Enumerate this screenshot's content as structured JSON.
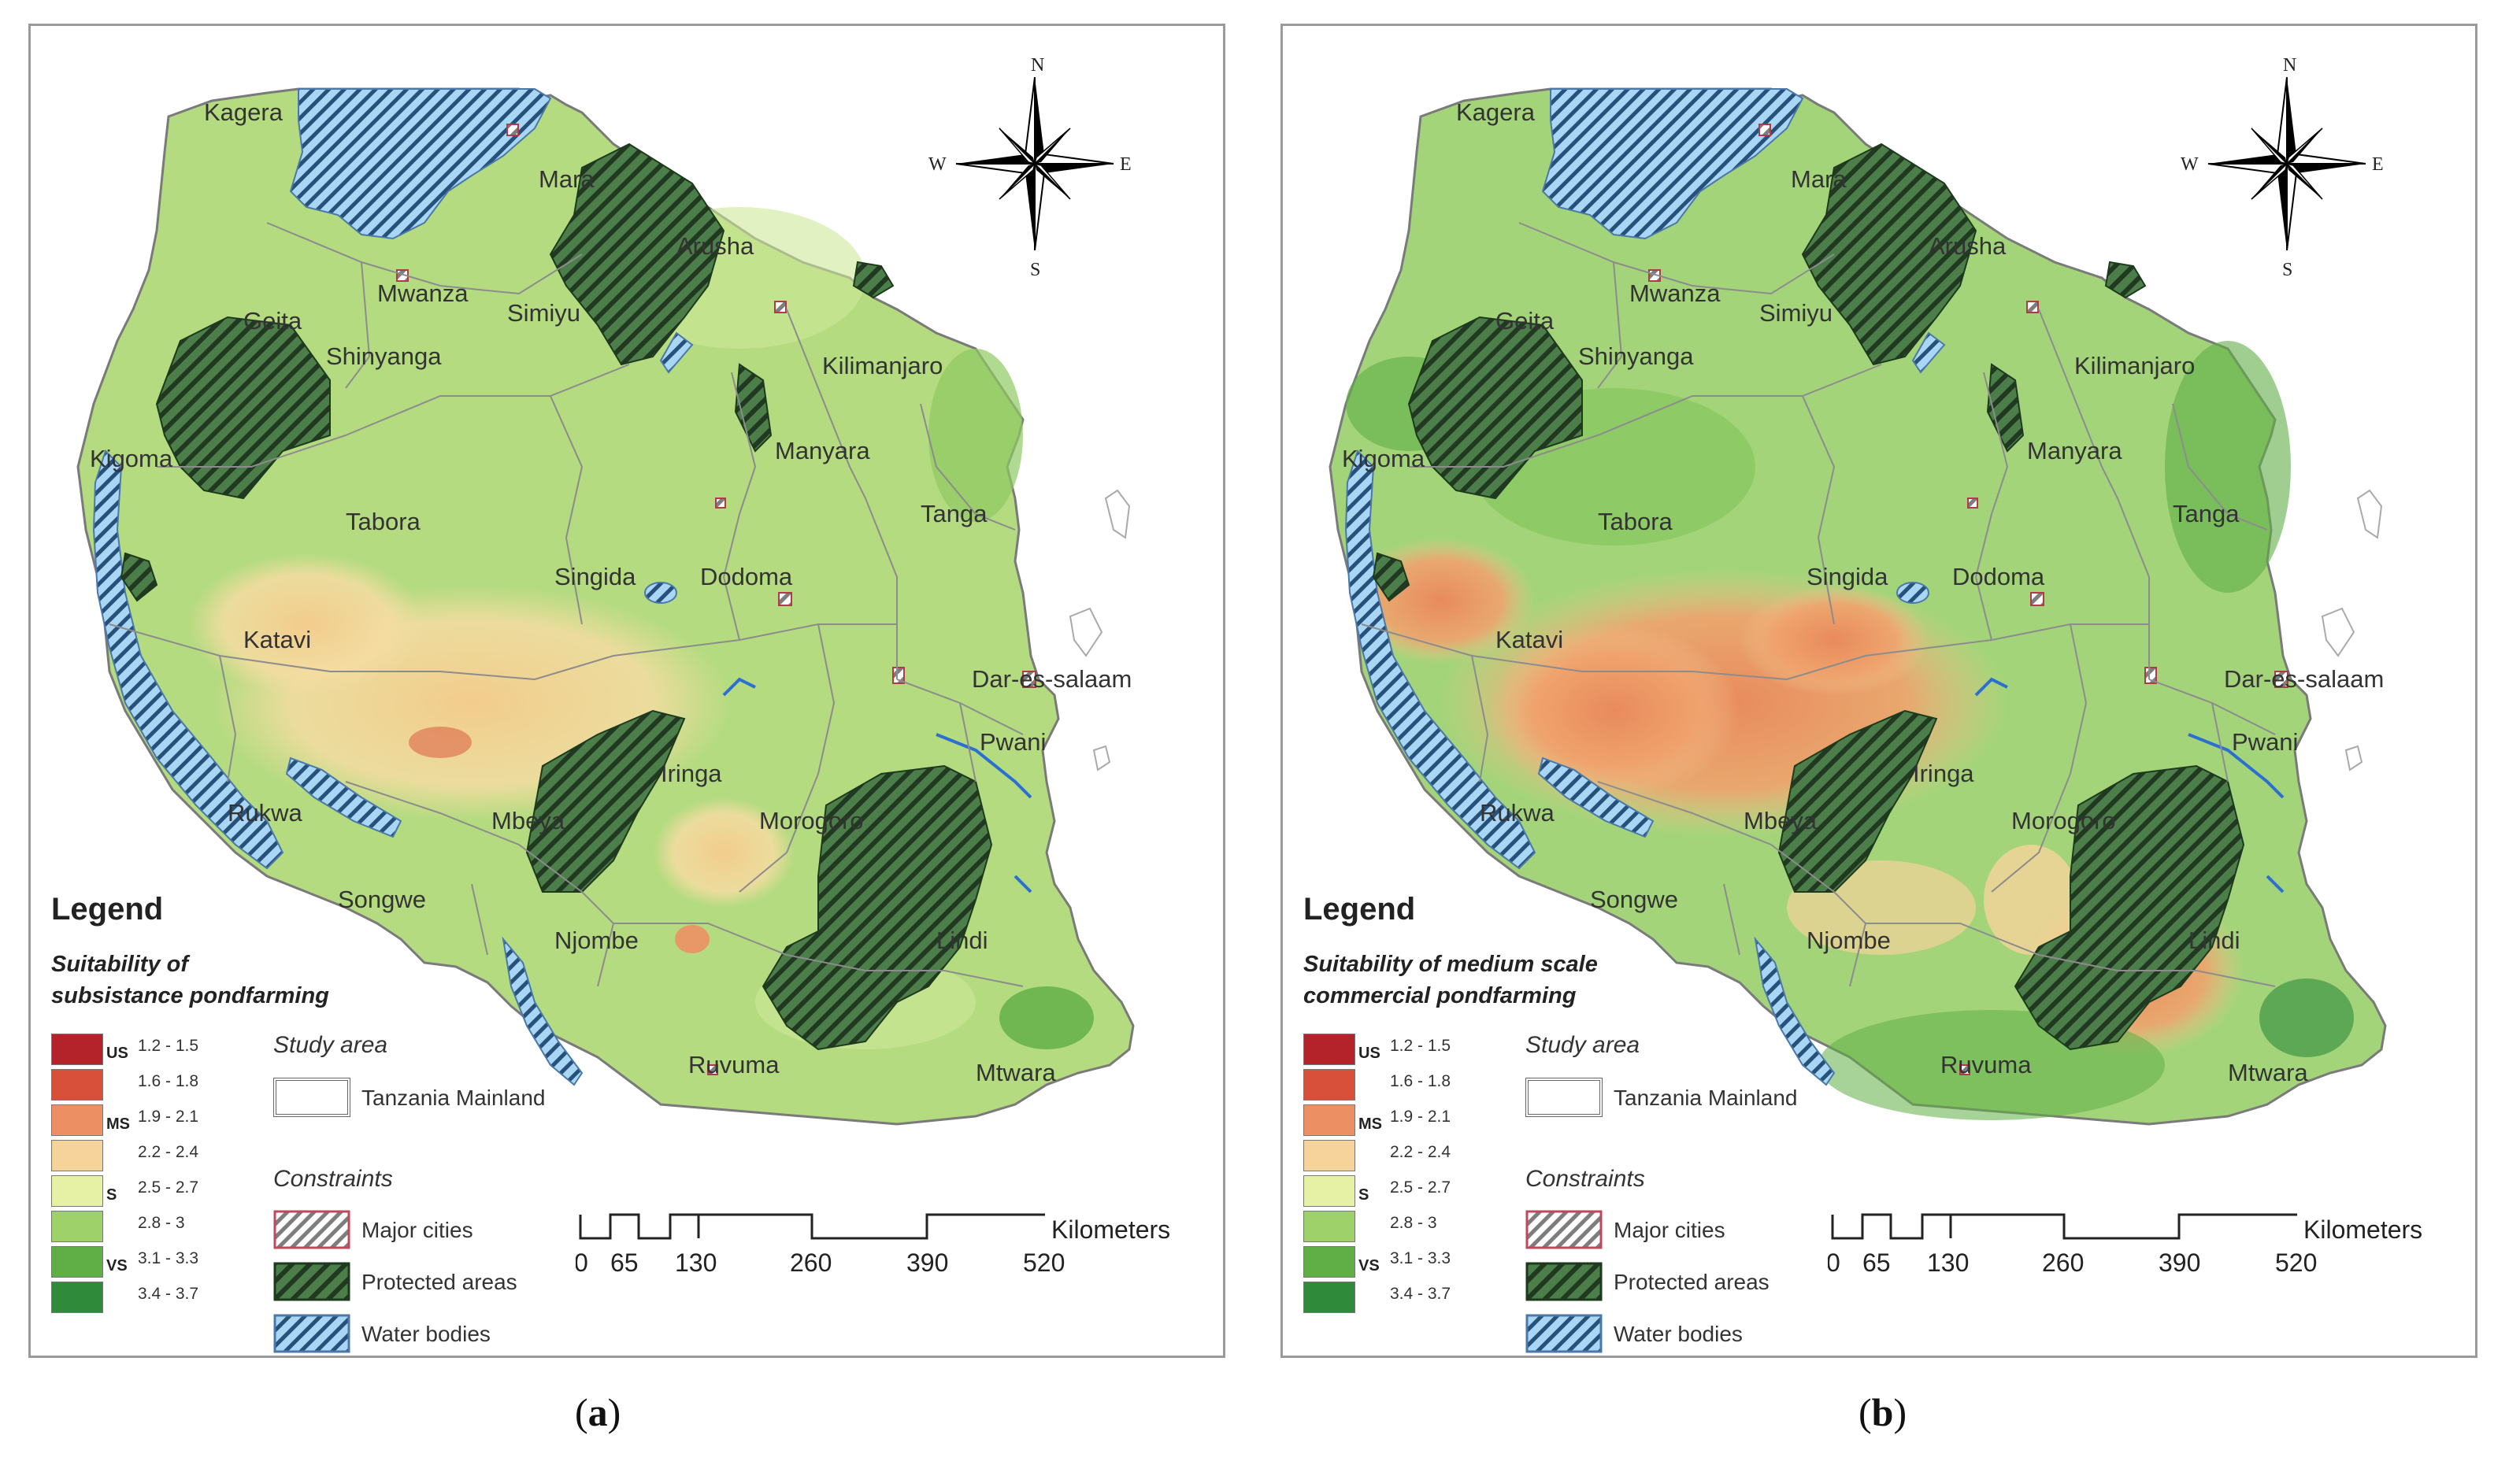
{
  "panels": [
    {
      "id": "a",
      "caption_letter": "a",
      "legend_title": "Legend",
      "suitability_title_line1": "Suitability of",
      "suitability_title_line2": "subsistance pondfarming",
      "regions_shift_x": 0
    },
    {
      "id": "b",
      "caption_letter": "b",
      "legend_title": "Legend",
      "suitability_title_line1": "Suitability of medium scale",
      "suitability_title_line2": "commercial pondfarming",
      "regions_shift_x": 0
    }
  ],
  "compass": {
    "n": "N",
    "s": "S",
    "e": "E",
    "w": "W"
  },
  "regions": [
    "Kagera",
    "Mara",
    "Mwanza",
    "Geita",
    "Simiyu",
    "Arusha",
    "Kilimanjaro",
    "Shinyanga",
    "Manyara",
    "Kigoma",
    "Tabora",
    "Tanga",
    "Singida",
    "Dodoma",
    "Katavi",
    "Dar-es-salaam",
    "Pwani",
    "Rukwa",
    "Mbeya",
    "Iringa",
    "Morogoro",
    "Songwe",
    "Njombe",
    "Lindi",
    "Ruvuma",
    "Mtwara"
  ],
  "suitability_classes": [
    {
      "code": "US",
      "range": "1.2 - 1.5",
      "color": "#b4222a"
    },
    {
      "code": "",
      "range": "1.6 - 1.8",
      "color": "#d9503a"
    },
    {
      "code": "MS",
      "range": "1.9 - 2.1",
      "color": "#ec9063"
    },
    {
      "code": "",
      "range": "2.2 - 2.4",
      "color": "#f5d39a"
    },
    {
      "code": "S",
      "range": "2.5 - 2.7",
      "color": "#e7f1a6"
    },
    {
      "code": "",
      "range": "2.8 - 3",
      "color": "#9fd16a"
    },
    {
      "code": "VS",
      "range": "3.1 - 3.3",
      "color": "#5fae46"
    },
    {
      "code": "",
      "range": "3.4 - 3.7",
      "color": "#2f8b3a"
    }
  ],
  "study_area": {
    "title": "Study area",
    "label": "Tanzania Mainland"
  },
  "constraints": {
    "title": "Constraints",
    "items": [
      {
        "label": "Major cities",
        "color": "#d76a72"
      },
      {
        "label": "Protected areas",
        "color": "#3d6f3d"
      },
      {
        "label": "Water bodies",
        "color": "#8fc4ea"
      }
    ]
  },
  "scale": {
    "ticks": [
      "0",
      "65",
      "130",
      "260",
      "390",
      "520"
    ],
    "unit": "Kilometers"
  },
  "colors": {
    "land_a": "#b7dc83",
    "land_b": "#a9d77c",
    "protected": "#3e6b3e",
    "water": "#8fc6ec",
    "border": "#8f8f8f"
  }
}
